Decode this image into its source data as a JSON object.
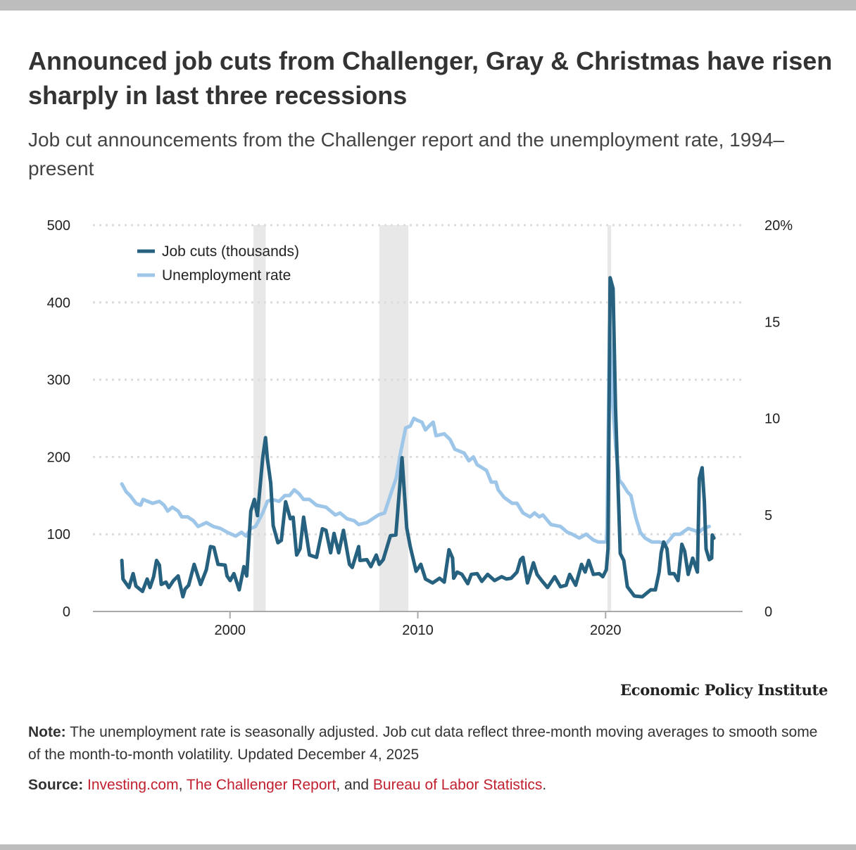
{
  "title": "Announced job cuts from Challenger, Gray & Christmas have risen sharply in last three recessions",
  "subtitle": "Job cut announcements from the Challenger report and the unemployment rate, 1994–present",
  "colors": {
    "job_cuts": "#26617f",
    "unemployment": "#9dc6e8",
    "recession_shading": "#e8e8e8",
    "link": "#c0202f"
  },
  "chart_data": {
    "type": "line",
    "title": "",
    "xlabel": "",
    "ylabel_left": "",
    "ylabel_right": "",
    "xlim": [
      1992.7,
      2027.3
    ],
    "ylim_left": [
      0,
      500
    ],
    "ylim_right": [
      0,
      20
    ],
    "x_ticks": [
      {
        "value": 2000,
        "label": "2000"
      },
      {
        "value": 2010,
        "label": "2010"
      },
      {
        "value": 2020,
        "label": "2020"
      }
    ],
    "y_left_ticks": [
      {
        "value": 0,
        "label": "0"
      },
      {
        "value": 100,
        "label": "100"
      },
      {
        "value": 200,
        "label": "200"
      },
      {
        "value": 300,
        "label": "300"
      },
      {
        "value": 400,
        "label": "400"
      },
      {
        "value": 500,
        "label": "500"
      }
    ],
    "y_right_ticks": [
      {
        "value": 0,
        "label": "0"
      },
      {
        "value": 5,
        "label": "5"
      },
      {
        "value": 10,
        "label": "10"
      },
      {
        "value": 15,
        "label": "15"
      },
      {
        "value": 20,
        "label": "20%"
      }
    ],
    "grid": true,
    "legend_position": "top-left",
    "recessions": [
      [
        2001.25,
        2001.9
      ],
      [
        2007.95,
        2009.5
      ],
      [
        2020.1,
        2020.3
      ]
    ],
    "series": [
      {
        "name": "Job cuts (thousands)",
        "axis": "left",
        "x": [
          1994.24,
          1994.3,
          1994.62,
          1994.84,
          1994.99,
          1995.34,
          1995.59,
          1995.74,
          1995.93,
          1996.09,
          1996.24,
          1996.34,
          1996.59,
          1996.74,
          1996.99,
          1997.24,
          1997.49,
          1997.61,
          1997.8,
          1998.09,
          1998.43,
          1998.61,
          1998.74,
          1998.96,
          1999.14,
          1999.36,
          1999.74,
          1999.84,
          2000.01,
          2000.21,
          2000.49,
          2000.74,
          2000.89,
          2001.11,
          2001.3,
          2001.46,
          2001.74,
          2001.89,
          2001.99,
          2002.17,
          2002.3,
          2002.55,
          2002.73,
          2002.96,
          2003.21,
          2003.36,
          2003.55,
          2003.73,
          2003.92,
          2004.23,
          2004.61,
          2004.92,
          2005.11,
          2005.36,
          2005.54,
          2005.79,
          2006.04,
          2006.36,
          2006.51,
          2006.85,
          2006.92,
          2007.29,
          2007.5,
          2007.79,
          2007.95,
          2008.16,
          2008.54,
          2008.83,
          2009.16,
          2009.41,
          2009.6,
          2009.91,
          2010.16,
          2010.41,
          2010.79,
          2011.16,
          2011.41,
          2011.66,
          2011.85,
          2011.91,
          2012.1,
          2012.35,
          2012.66,
          2012.85,
          2013.16,
          2013.41,
          2013.72,
          2014.09,
          2014.47,
          2014.72,
          2014.97,
          2015.28,
          2015.47,
          2015.6,
          2015.84,
          2016.16,
          2016.35,
          2016.6,
          2016.91,
          2017.29,
          2017.6,
          2017.9,
          2018.09,
          2018.41,
          2018.72,
          2018.91,
          2019.1,
          2019.35,
          2019.66,
          2019.85,
          2020.04,
          2020.13,
          2020.24,
          2020.4,
          2020.53,
          2020.78,
          2020.97,
          2021.16,
          2021.53,
          2021.96,
          2022.4,
          2022.65,
          2022.85,
          2022.96,
          2023.09,
          2023.27,
          2023.4,
          2023.65,
          2023.86,
          2024.06,
          2024.21,
          2024.4,
          2024.64,
          2024.89,
          2024.99,
          2025.14,
          2025.26,
          2025.35,
          2025.52,
          2025.65,
          2025.68,
          2025.77
        ],
        "values": [
          66,
          42,
          31,
          49,
          33,
          26,
          42,
          31,
          45,
          66,
          60,
          35,
          38,
          31,
          40,
          46,
          19,
          29,
          34,
          61,
          35,
          46,
          54,
          84,
          83,
          61,
          60,
          46,
          40,
          49,
          28,
          58,
          46,
          130,
          145,
          124,
          199,
          225,
          198,
          166,
          111,
          89,
          92,
          142,
          120,
          122,
          73,
          81,
          122,
          73,
          70,
          107,
          105,
          76,
          101,
          76,
          105,
          61,
          57,
          84,
          66,
          67,
          58,
          73,
          61,
          67,
          98,
          99,
          199,
          108,
          84,
          52,
          61,
          42,
          37,
          43,
          38,
          80,
          69,
          43,
          51,
          48,
          36,
          48,
          49,
          39,
          48,
          40,
          45,
          42,
          43,
          51,
          67,
          70,
          37,
          63,
          48,
          40,
          31,
          45,
          32,
          34,
          48,
          34,
          61,
          51,
          66,
          48,
          49,
          45,
          54,
          81,
          432,
          418,
          263,
          75,
          66,
          32,
          20,
          19,
          28,
          28,
          51,
          76,
          90,
          81,
          49,
          49,
          40,
          87,
          78,
          48,
          69,
          51,
          172,
          186,
          142,
          81,
          67,
          69,
          99,
          95
        ]
      },
      {
        "name": "Unemployment rate",
        "axis": "right",
        "x": [
          1994.24,
          1994.47,
          1994.68,
          1994.99,
          1995.24,
          1995.37,
          1995.62,
          1995.87,
          1996.24,
          1996.49,
          1996.68,
          1996.93,
          1997.24,
          1997.43,
          1997.74,
          1998.05,
          1998.3,
          1998.74,
          1999.11,
          1999.49,
          1999.86,
          2000.3,
          2000.61,
          2000.86,
          2001.11,
          2001.36,
          2001.74,
          2001.99,
          2002.24,
          2002.61,
          2002.92,
          2003.17,
          2003.42,
          2003.67,
          2003.92,
          2004.23,
          2004.61,
          2005.11,
          2005.61,
          2005.86,
          2006.23,
          2006.61,
          2006.85,
          2007.29,
          2007.6,
          2007.91,
          2008.23,
          2008.6,
          2008.85,
          2009.1,
          2009.35,
          2009.6,
          2009.79,
          2009.97,
          2010.22,
          2010.41,
          2010.6,
          2010.82,
          2010.97,
          2011.41,
          2011.72,
          2011.97,
          2012.47,
          2012.72,
          2012.96,
          2013.16,
          2013.66,
          2013.91,
          2014.16,
          2014.28,
          2014.6,
          2015.03,
          2015.28,
          2015.6,
          2015.97,
          2016.22,
          2016.47,
          2016.66,
          2017.09,
          2017.6,
          2017.97,
          2018.22,
          2018.6,
          2018.97,
          2019.35,
          2019.6,
          2020.04,
          2020.08,
          2020.21,
          2020.36,
          2020.55,
          2020.73,
          2020.9,
          2021.16,
          2021.35,
          2021.6,
          2021.85,
          2022.1,
          2022.46,
          2022.85,
          2023.22,
          2023.4,
          2023.65,
          2023.97,
          2024.4,
          2024.71,
          2024.96,
          2025.21,
          2025.52
        ],
        "values": [
          6.6,
          6.2,
          6.0,
          5.6,
          5.5,
          5.8,
          5.7,
          5.6,
          5.7,
          5.5,
          5.2,
          5.4,
          5.2,
          4.9,
          4.9,
          4.7,
          4.4,
          4.6,
          4.4,
          4.3,
          4.1,
          3.9,
          4.1,
          3.9,
          4.3,
          4.4,
          5.1,
          5.7,
          5.8,
          5.7,
          6.0,
          6.0,
          6.3,
          6.1,
          5.8,
          5.8,
          5.5,
          5.4,
          5.0,
          5.1,
          4.8,
          4.7,
          4.5,
          4.6,
          4.8,
          5.0,
          5.1,
          6.2,
          6.9,
          8.3,
          9.5,
          9.6,
          10.0,
          9.9,
          9.8,
          9.4,
          9.6,
          9.8,
          9.1,
          9.2,
          8.9,
          8.4,
          8.2,
          7.8,
          8.0,
          7.6,
          7.3,
          6.7,
          6.7,
          6.3,
          5.9,
          5.6,
          5.6,
          5.1,
          4.9,
          5.1,
          4.9,
          5.0,
          4.5,
          4.4,
          4.1,
          4.0,
          3.8,
          4.0,
          3.7,
          3.6,
          3.6,
          4.4,
          14.8,
          11.0,
          8.4,
          6.8,
          6.6,
          6.2,
          6.0,
          4.9,
          4.1,
          3.8,
          3.6,
          3.6,
          3.5,
          3.7,
          4.0,
          4.0,
          4.3,
          4.2,
          4.1,
          4.3,
          4.4
        ]
      }
    ]
  },
  "legend": {
    "job_cuts": "Job cuts (thousands)",
    "unemployment": "Unemployment rate"
  },
  "logo": "Economic Policy Institute",
  "note": {
    "label": "Note:",
    "text": "The unemployment rate is seasonally adjusted. Job cut data reflect three-month moving averages to smooth some of the month-to-month volatility. Updated December 4, 2025"
  },
  "source": {
    "label": "Source:",
    "links": [
      "Investing.com",
      "The Challenger Report",
      "Bureau of Labor Statistics"
    ],
    "sep1": ", ",
    "sep2": ", and ",
    "end": "."
  }
}
